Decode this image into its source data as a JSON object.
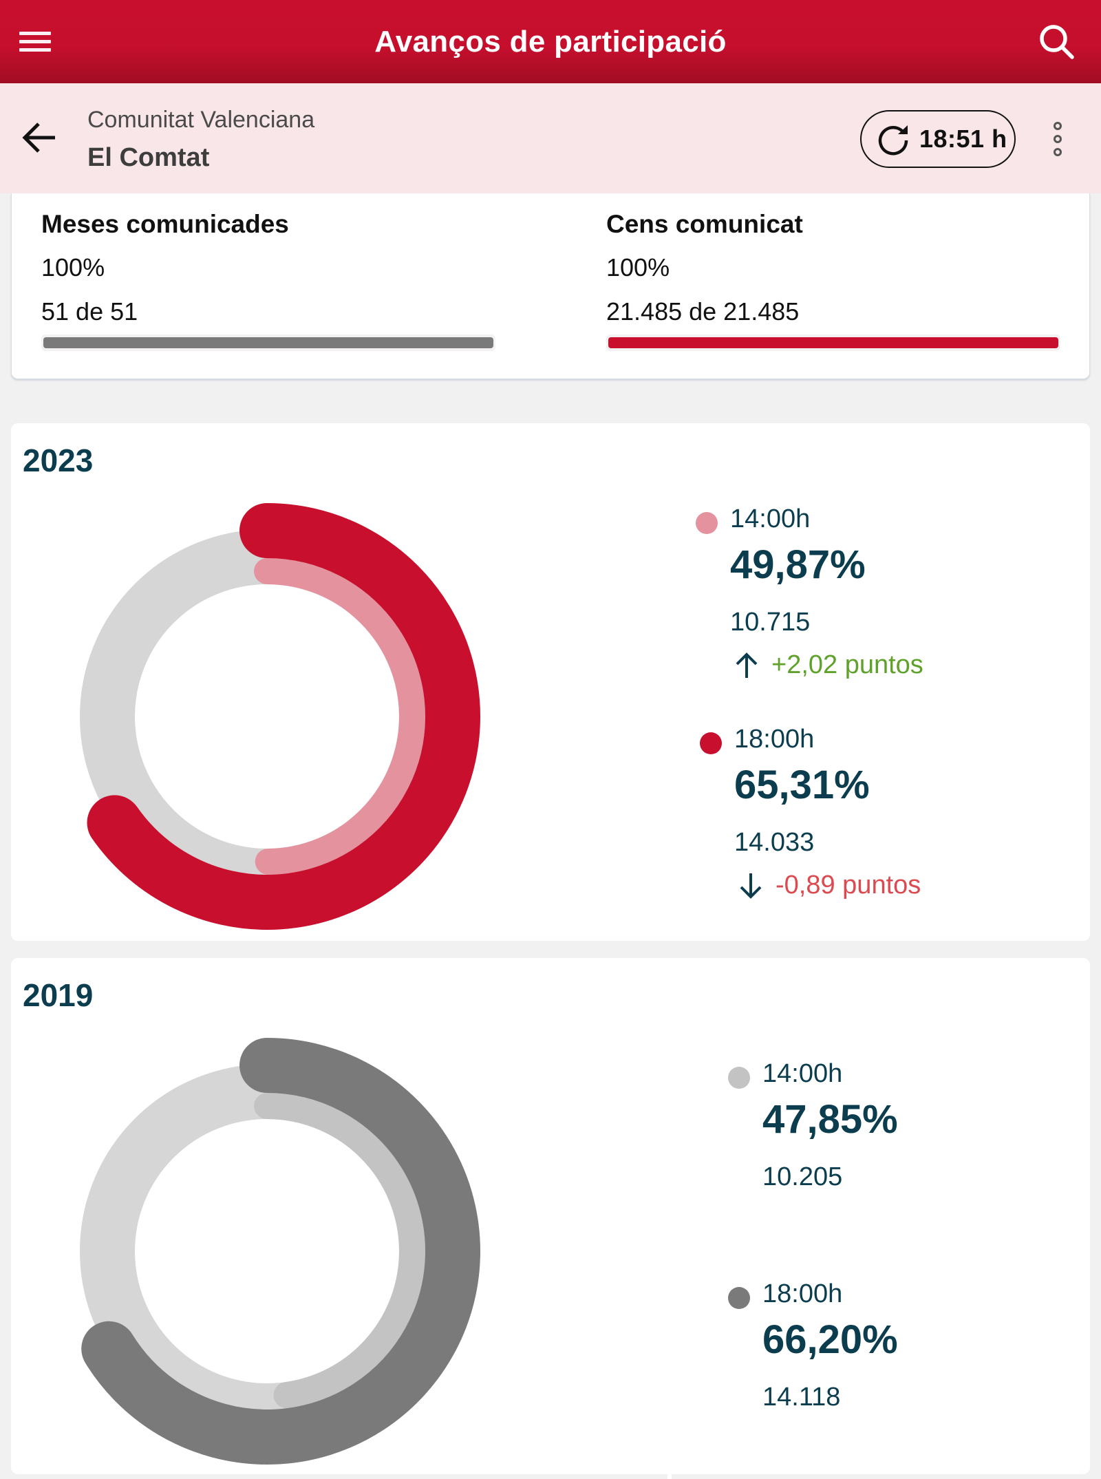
{
  "appbar": {
    "title": "Avanços de participació",
    "menu_icon": "hamburger-menu-icon",
    "search_icon": "search-icon"
  },
  "subheader": {
    "region": "Comunitat Valenciana",
    "area": "El Comtat",
    "back_icon": "arrow-left-icon",
    "refresh_time": "18:51 h",
    "refresh_icon": "refresh-icon",
    "more_icon": "more-vertical-icon"
  },
  "summary": {
    "tables": {
      "title": "Meses comunicades",
      "percent": "100%",
      "count": "51 de 51",
      "progress": 1.0,
      "color": "#7a7a7a"
    },
    "census": {
      "title": "Cens comunicat",
      "percent": "100%",
      "count": "21.485 de 21.485",
      "progress": 1.0,
      "color": "#c8102e"
    }
  },
  "colors": {
    "brand": "#c8102e",
    "text_dark": "#0b3d4f",
    "track": "#d6d6d6",
    "positive": "#5fa22a",
    "negative": "#dc4a4f"
  },
  "chart_data": [
    {
      "type": "pie",
      "variant": "concentric-radial-donut",
      "title": "2023",
      "series": [
        {
          "name": "14:00h",
          "value": 49.87,
          "label": "49,87%",
          "votes": "10.715",
          "delta": "+2,02 puntos",
          "delta_direction": "up",
          "color": "#e5929f"
        },
        {
          "name": "18:00h",
          "value": 65.31,
          "label": "65,31%",
          "votes": "14.033",
          "delta": "-0,89 puntos",
          "delta_direction": "down",
          "color": "#c8102e"
        }
      ],
      "max": 100,
      "legend": "right"
    },
    {
      "type": "pie",
      "variant": "concentric-radial-donut",
      "title": "2019",
      "series": [
        {
          "name": "14:00h",
          "value": 47.85,
          "label": "47,85%",
          "votes": "10.205",
          "color": "#c3c3c3"
        },
        {
          "name": "18:00h",
          "value": 66.2,
          "label": "66,20%",
          "votes": "14.118",
          "color": "#7a7a7a"
        }
      ],
      "max": 100,
      "legend": "right"
    }
  ]
}
